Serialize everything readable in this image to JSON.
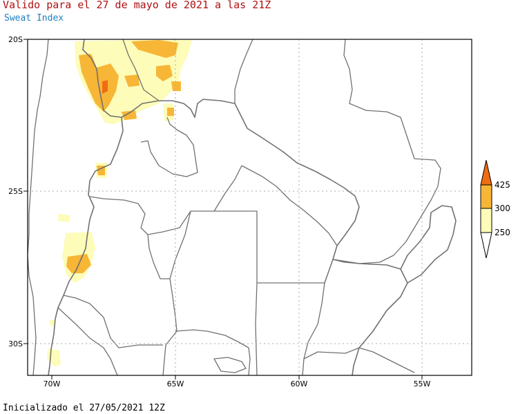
{
  "header": {
    "title": "Valido para el 27 de mayo de 2021 a las 21Z",
    "subtitle": "Sweat Index"
  },
  "footer": {
    "init_text": "Inicializado el 27/05/2021 12Z"
  },
  "map": {
    "lat_labels": [
      "20S",
      "25S",
      "30S"
    ],
    "lon_labels": [
      "70W",
      "65W",
      "60W",
      "55W"
    ],
    "colors": {
      "border": "#707070",
      "grid": "#aaaaaa",
      "level_250": "#fdfcb8",
      "level_300": "#f7b636",
      "level_425": "#ef6c12"
    }
  },
  "colorbar": {
    "labels": [
      "425",
      "300",
      "250"
    ]
  }
}
